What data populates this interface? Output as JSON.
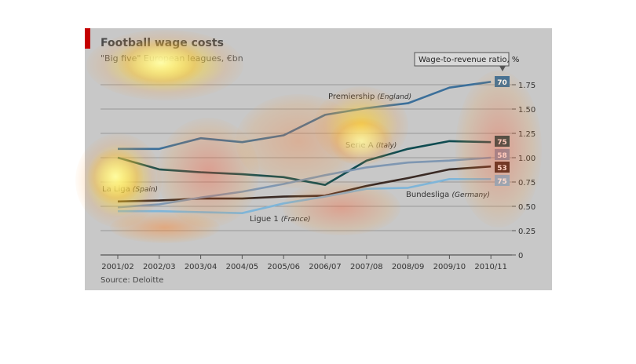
{
  "colors": {
    "accent": "#c40000",
    "panel": "#c8c8c8",
    "premiership": "#3b6f9a",
    "serie_a": "#0f4b50",
    "la_liga": "#3a2a24",
    "bundesliga": "#7f97b2",
    "ligue_1": "#7fb5d8"
  },
  "header": {
    "title": "Football wage costs",
    "subtitle": "\"Big five\" European leagues, €bn"
  },
  "source": "Source: Deloitte",
  "legend_title": "Wage-to-revenue ratio, %",
  "chart_data": {
    "type": "line",
    "title": "Football wage costs",
    "subtitle": "\"Big five\" European leagues, €bn",
    "categories": [
      "2001/02",
      "2002/03",
      "2003/04",
      "2004/05",
      "2005/06",
      "2006/07",
      "2007/08",
      "2008/09",
      "2009/10",
      "2010/11"
    ],
    "ylim": [
      0,
      1.75
    ],
    "yticks": [
      "0",
      "0.25",
      "0.50",
      "0.75",
      "1.00",
      "1.25",
      "1.50",
      "1.75"
    ],
    "grid": true,
    "y_axis_side": "right",
    "series": [
      {
        "name": "Premiership",
        "country": "(England)",
        "ratio": "70",
        "color_key": "premiership",
        "values": [
          1.09,
          1.09,
          1.2,
          1.16,
          1.23,
          1.44,
          1.51,
          1.56,
          1.72,
          1.78
        ]
      },
      {
        "name": "Serie A",
        "country": "(Italy)",
        "ratio": "75",
        "color_key": "serie_a",
        "values": [
          1.0,
          0.88,
          0.85,
          0.83,
          0.8,
          0.72,
          0.97,
          1.09,
          1.17,
          1.16
        ]
      },
      {
        "name": "La Liga",
        "country": "(Spain)",
        "ratio": "53",
        "color_key": "la_liga",
        "values": [
          0.55,
          0.56,
          0.58,
          0.58,
          0.6,
          0.61,
          0.71,
          0.79,
          0.88,
          0.91
        ]
      },
      {
        "name": "Bundesliga",
        "country": "(Germany)",
        "ratio": "58",
        "color_key": "bundesliga",
        "values": [
          0.49,
          0.52,
          0.59,
          0.65,
          0.73,
          0.82,
          0.9,
          0.95,
          0.97,
          1.0
        ]
      },
      {
        "name": "Ligue 1",
        "country": "(France)",
        "ratio": "75",
        "color_key": "ligue_1",
        "values": [
          0.45,
          0.45,
          0.44,
          0.43,
          0.53,
          0.6,
          0.68,
          0.69,
          0.78,
          0.78
        ]
      }
    ]
  }
}
